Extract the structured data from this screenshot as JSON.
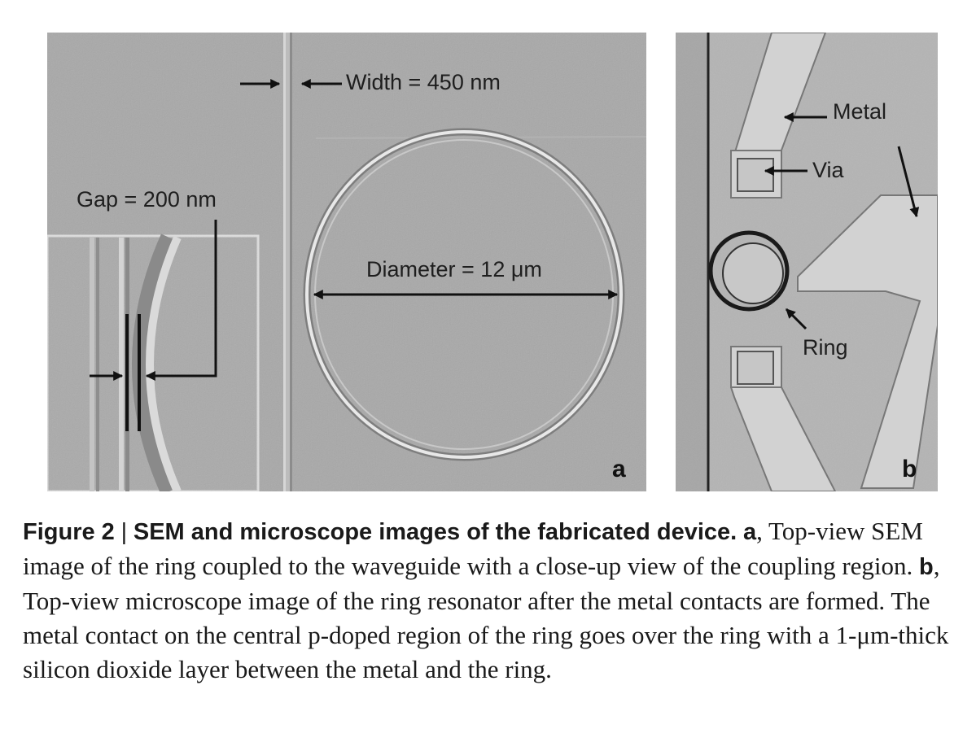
{
  "panel_a": {
    "width_label": "Width = 450 nm",
    "gap_label": "Gap = 200 nm",
    "diameter_label": "Diameter = 12 μm",
    "letter": "a"
  },
  "panel_b": {
    "metal_label": "Metal",
    "via_label": "Via",
    "ring_label": "Ring",
    "letter": "b"
  },
  "caption": {
    "figure_label": "Figure 2",
    "separator": "|",
    "title": "SEM and microscope images of the fabricated device.",
    "a_label": "a",
    "a_text": ", Top-view SEM image of the ring coupled to the waveguide with a close-up view of the coupling region.",
    "b_label": "b",
    "b_text": ", Top-view microscope image of the ring resonator after the metal contacts are formed. The metal contact on the central p-doped region of the ring goes over the ring with a 1-μm-thick silicon dioxide layer between the metal and the ring."
  }
}
